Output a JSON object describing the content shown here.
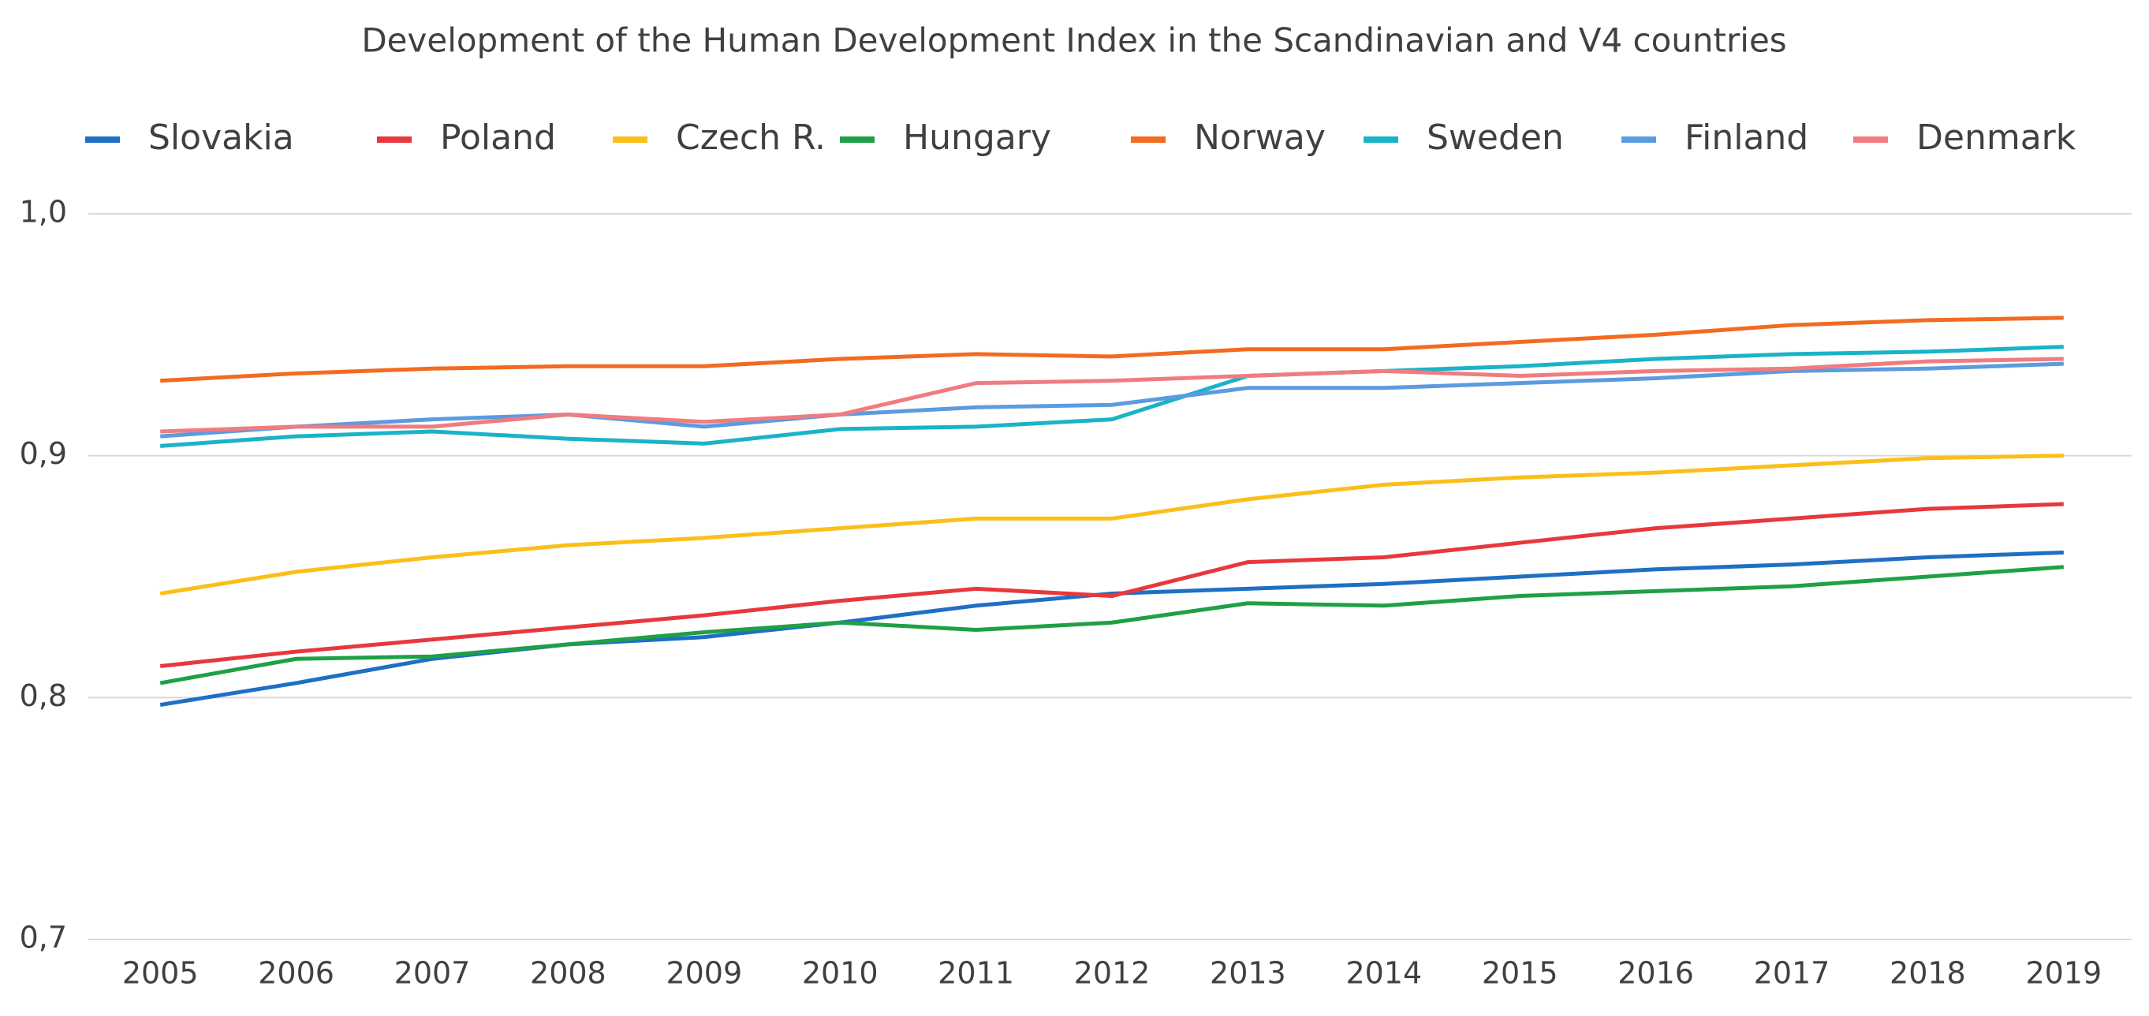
{
  "chart_data": {
    "type": "line",
    "title": "Development of the Human Development Index in the Scandinavian and V4 countries",
    "categories": [
      "2005",
      "2006",
      "2007",
      "2008",
      "2009",
      "2010",
      "2011",
      "2012",
      "2013",
      "2014",
      "2015",
      "2016",
      "2017",
      "2018",
      "2019"
    ],
    "ylim": [
      0.7,
      1.0
    ],
    "yticks": [
      {
        "value": 0.7,
        "label": "0,7"
      },
      {
        "value": 0.8,
        "label": "0,8"
      },
      {
        "value": 0.9,
        "label": "0,9"
      },
      {
        "value": 1.0,
        "label": "1,0"
      }
    ],
    "grid": true,
    "legend": "top",
    "series": [
      {
        "name": "Slovakia",
        "color": "#1f6fc4",
        "values": [
          0.797,
          0.806,
          0.816,
          0.822,
          0.825,
          0.831,
          0.838,
          0.843,
          0.845,
          0.847,
          0.85,
          0.853,
          0.855,
          0.858,
          0.86
        ]
      },
      {
        "name": "Poland",
        "color": "#e8383d",
        "values": [
          0.813,
          0.819,
          0.824,
          0.829,
          0.834,
          0.84,
          0.845,
          0.842,
          0.856,
          0.858,
          0.864,
          0.87,
          0.874,
          0.878,
          0.88
        ]
      },
      {
        "name": "Czech R.",
        "color": "#fbbf1a",
        "values": [
          0.843,
          0.852,
          0.858,
          0.863,
          0.866,
          0.87,
          0.874,
          0.874,
          0.882,
          0.888,
          0.891,
          0.893,
          0.896,
          0.899,
          0.9
        ]
      },
      {
        "name": "Hungary",
        "color": "#1fa046",
        "values": [
          0.806,
          0.816,
          0.817,
          0.822,
          0.827,
          0.831,
          0.828,
          0.831,
          0.839,
          0.838,
          0.842,
          0.844,
          0.846,
          0.85,
          0.854
        ]
      },
      {
        "name": "Norway",
        "color": "#f26b21",
        "values": [
          0.931,
          0.934,
          0.936,
          0.937,
          0.937,
          0.94,
          0.942,
          0.941,
          0.944,
          0.944,
          0.947,
          0.95,
          0.954,
          0.956,
          0.957
        ]
      },
      {
        "name": "Sweden",
        "color": "#1ab3c7",
        "values": [
          0.904,
          0.908,
          0.91,
          0.907,
          0.905,
          0.911,
          0.912,
          0.915,
          0.933,
          0.935,
          0.937,
          0.94,
          0.942,
          0.943,
          0.945
        ]
      },
      {
        "name": "Finland",
        "color": "#5b9be0",
        "values": [
          0.908,
          0.912,
          0.915,
          0.917,
          0.912,
          0.917,
          0.92,
          0.921,
          0.928,
          0.928,
          0.93,
          0.932,
          0.935,
          0.936,
          0.938
        ]
      },
      {
        "name": "Denmark",
        "color": "#f07c80",
        "values": [
          0.91,
          0.912,
          0.912,
          0.917,
          0.914,
          0.917,
          0.93,
          0.931,
          0.933,
          0.935,
          0.933,
          0.935,
          0.936,
          0.939,
          0.94
        ]
      }
    ]
  }
}
